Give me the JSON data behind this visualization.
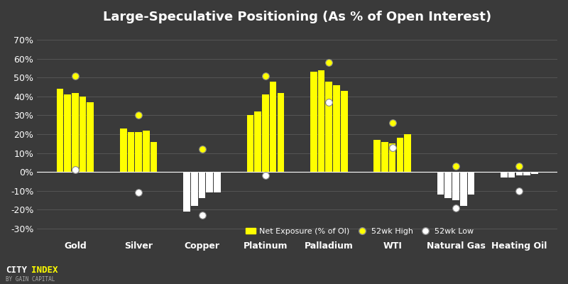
{
  "title": "Large-Speculative Positioning (As % of Open Interest)",
  "background_color": "#3a3a3a",
  "bar_color": "#ffff00",
  "bar_color_negative": "#ffffff",
  "text_color": "#ffffff",
  "grid_color": "#555555",
  "categories": [
    "Gold",
    "Silver",
    "Copper",
    "Platinum",
    "Palladium",
    "WTI",
    "Natural Gas",
    "Heating Oil"
  ],
  "bars": [
    [
      44,
      41,
      42,
      40,
      37
    ],
    [
      23,
      21,
      21,
      22,
      16
    ],
    [
      -21,
      -18,
      -14,
      -11,
      -11
    ],
    [
      30,
      32,
      41,
      48,
      42
    ],
    [
      53,
      54,
      48,
      46,
      43
    ],
    [
      17,
      16,
      15,
      18,
      20
    ],
    [
      -12,
      -14,
      -15,
      -18,
      -12
    ],
    [
      -3,
      -3,
      -2,
      -2,
      -1
    ]
  ],
  "high_52wk": [
    51,
    30,
    12,
    51,
    58,
    26,
    3,
    3
  ],
  "low_52wk": [
    1,
    -11,
    -23,
    -2,
    37,
    13,
    -19,
    -10
  ],
  "ylim": [
    -35,
    75
  ],
  "yticks": [
    -30,
    -20,
    -10,
    0,
    10,
    20,
    30,
    40,
    50,
    60,
    70
  ],
  "legend_labels": [
    "Net Exposure (% of OI)",
    "52wk High",
    "52wk Low"
  ]
}
